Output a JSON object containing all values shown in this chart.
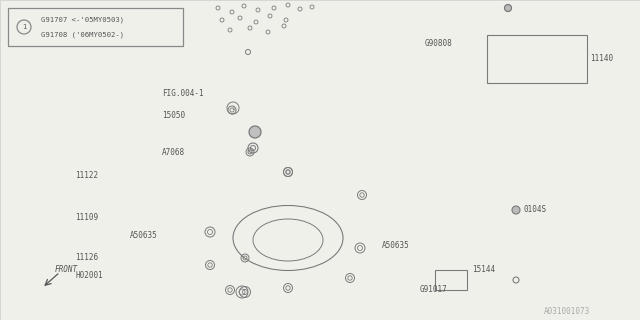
{
  "bg_color": "#f0f0eb",
  "line_color": "#7a7a7a",
  "text_color": "#555555",
  "border_color": "#888888",
  "fig_width": 6.4,
  "fig_height": 3.2,
  "dpi": 100,
  "watermark": "A031001073",
  "legend_line1": "G91707 <-'05MY0503)",
  "legend_line2": "G91708 ('06MY0502-)",
  "front_label": "FRONT",
  "labels": {
    "FIG004": "FIG.004-1",
    "p15050": "15050",
    "A7068": "A7068",
    "p11122": "11122",
    "p11109": "11109",
    "A50635L": "A50635",
    "A50635R": "A50635",
    "p11126": "11126",
    "H02001": "H02001",
    "G90808": "G90808",
    "p11140": "11140",
    "p0104S": "0104S",
    "G91017": "G91017",
    "p15144": "15144"
  }
}
